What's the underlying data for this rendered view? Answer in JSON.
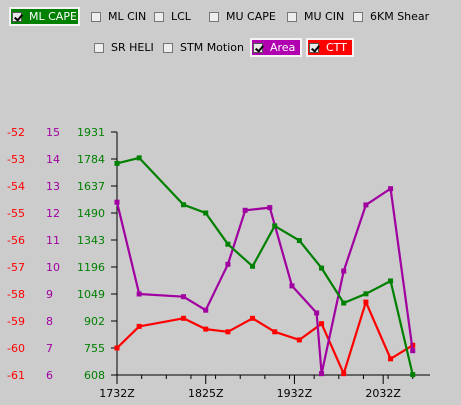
{
  "toggles": [
    {
      "id": "ml-cape",
      "label": "ML CAPE",
      "checked": true,
      "bg": "#008000"
    },
    {
      "id": "ml-cin",
      "label": "ML CIN",
      "checked": false
    },
    {
      "id": "lcl",
      "label": "LCL",
      "checked": false
    },
    {
      "id": "mu-cape",
      "label": "MU CAPE",
      "checked": false
    },
    {
      "id": "mu-cin",
      "label": "MU CIN",
      "checked": false
    },
    {
      "id": "6km-shear",
      "label": "6KM Shear",
      "checked": false
    },
    {
      "id": "sr-heli",
      "label": "SR HELI",
      "checked": false
    },
    {
      "id": "stm-motion",
      "label": "STM Motion",
      "checked": false
    },
    {
      "id": "area",
      "label": "Area",
      "checked": true,
      "bg": "#b000b0"
    },
    {
      "id": "ctt",
      "label": "CTT",
      "checked": true,
      "bg": "#ff0000"
    }
  ],
  "colors": {
    "ml_cape": "#008000",
    "area": "#a000a0",
    "ctt": "#ff0000",
    "axis_area": "#a000a0",
    "axis_cape": "#008000",
    "axis_ctt": "#ff0000"
  },
  "chart_data": {
    "type": "line",
    "x": [
      0,
      1,
      2,
      3,
      4,
      5,
      6,
      7,
      8,
      9,
      10,
      11,
      12
    ],
    "xlim": [
      0,
      12.7
    ],
    "xtick_positions": [
      0,
      3.6,
      7.2,
      10.8
    ],
    "xticks": [
      "1732Z",
      "1825Z",
      "1932Z",
      "2032Z"
    ],
    "axes": {
      "ml_cape": {
        "ticks": [
          608,
          755,
          902,
          1049,
          1196,
          1343,
          1490,
          1637,
          1784,
          1931
        ],
        "ylim": [
          608,
          1931
        ]
      },
      "area": {
        "ticks": [
          6,
          7,
          8,
          9,
          10,
          11,
          12,
          13,
          14,
          15
        ],
        "ylim": [
          6,
          15
        ]
      },
      "ctt": {
        "ticks": [
          -61,
          -60,
          -59,
          -58,
          -57,
          -56,
          -55,
          -54,
          -53,
          -52
        ],
        "ylim": [
          -61,
          -52
        ]
      }
    },
    "series": [
      {
        "key": "ml_cape",
        "name": "ML CAPE",
        "x": [
          0,
          0.9,
          2.7,
          3.6,
          4.5,
          5.5,
          6.4,
          7.4,
          8.3,
          9.2,
          10.1,
          11.1,
          12
        ],
        "values": [
          1760,
          1790,
          1535,
          1490,
          1320,
          1200,
          1420,
          1340,
          1190,
          1000,
          1050,
          1120,
          610
        ]
      },
      {
        "key": "area",
        "name": "Area",
        "x": [
          0,
          0.9,
          2.7,
          3.6,
          4.5,
          5.2,
          6.2,
          7.1,
          8.1,
          8.3,
          9.2,
          10.1,
          11.1,
          12
        ],
        "values": [
          12.4,
          9.0,
          8.9,
          8.4,
          10.1,
          12.1,
          12.2,
          9.3,
          8.3,
          6.05,
          9.85,
          12.3,
          12.9,
          6.9
        ]
      },
      {
        "key": "ctt",
        "name": "CTT",
        "x": [
          0,
          0.9,
          2.7,
          3.6,
          4.5,
          5.5,
          6.4,
          7.4,
          8.3,
          9.2,
          10.1,
          11.1,
          12
        ],
        "values": [
          -60.0,
          -59.2,
          -58.9,
          -59.3,
          -59.4,
          -58.9,
          -59.4,
          -59.7,
          -59.1,
          -60.95,
          -58.3,
          -60.4,
          -59.9
        ]
      }
    ]
  }
}
